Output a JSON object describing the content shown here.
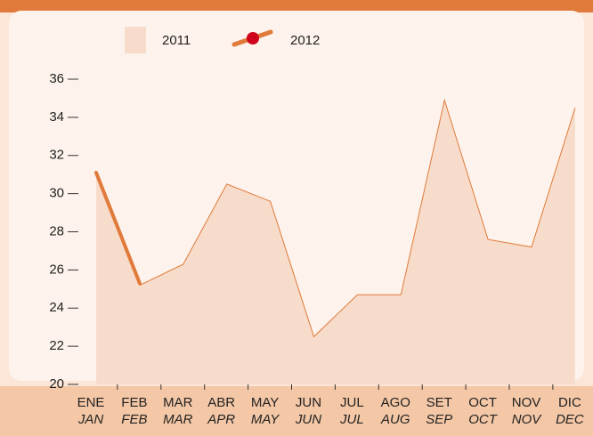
{
  "chart_data": {
    "type": "area",
    "categories": [
      "ENE",
      "FEB",
      "MAR",
      "ABR",
      "MAY",
      "JUN",
      "JUL",
      "AGO",
      "SET",
      "OCT",
      "NOV",
      "DIC"
    ],
    "categories_secondary": [
      "JAN",
      "FEB",
      "MAR",
      "APR",
      "MAY",
      "JUN",
      "JUL",
      "AUG",
      "SEP",
      "OCT",
      "NOV",
      "DEC"
    ],
    "series": [
      {
        "name": "2011",
        "color": "#e07a3a",
        "fill": "#f7dccb",
        "values": [
          31.0,
          25.2,
          26.3,
          30.5,
          29.6,
          22.5,
          24.7,
          24.7,
          34.9,
          27.6,
          27.2,
          34.5
        ]
      },
      {
        "name": "2012",
        "color": "#e07a3a",
        "marker_color": "#d0021b",
        "values": [
          31.1,
          25.3,
          null,
          null,
          null,
          null,
          null,
          null,
          null,
          null,
          null,
          null
        ]
      }
    ],
    "ylim": [
      20,
      36
    ],
    "yticks": [
      20,
      22,
      24,
      26,
      28,
      30,
      32,
      34,
      36
    ]
  }
}
